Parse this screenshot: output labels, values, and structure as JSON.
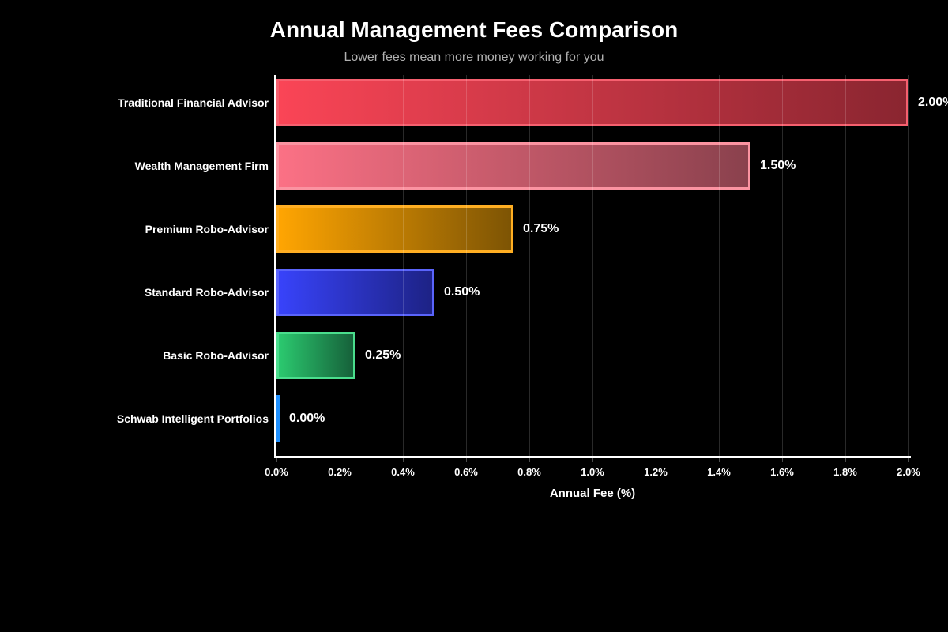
{
  "page": {
    "background_color": "#000000"
  },
  "chart_data": {
    "type": "bar",
    "orientation": "horizontal",
    "title": "Annual Management Fees Comparison",
    "subtitle": "Lower fees mean more money working for you",
    "xlabel": "Annual Fee (%)",
    "xlim": [
      0.0,
      2.0
    ],
    "grid": true,
    "legend": "none",
    "title_color": "#ffffff",
    "subtitle_color": "#b0b0b0",
    "axis_text_color": "#ffffff",
    "categories": [
      "Traditional Financial Advisor",
      "Wealth Management Firm",
      "Premium Robo-Advisor",
      "Standard Robo-Advisor",
      "Basic Robo-Advisor",
      "Schwab Intelligent Portfolios"
    ],
    "values": [
      2.0,
      1.5,
      0.75,
      0.5,
      0.25,
      0.0
    ],
    "value_labels": [
      "2.00%",
      "1.50%",
      "0.75%",
      "0.50%",
      "0.25%",
      "0.00%"
    ],
    "x_ticks": [
      {
        "value": 0.0,
        "label": "0.0%"
      },
      {
        "value": 0.2,
        "label": "0.2%"
      },
      {
        "value": 0.4,
        "label": "0.4%"
      },
      {
        "value": 0.6,
        "label": "0.6%"
      },
      {
        "value": 0.8,
        "label": "0.8%"
      },
      {
        "value": 1.0,
        "label": "1.0%"
      },
      {
        "value": 1.2,
        "label": "1.2%"
      },
      {
        "value": 1.4,
        "label": "1.4%"
      },
      {
        "value": 1.6,
        "label": "1.6%"
      },
      {
        "value": 1.8,
        "label": "1.8%"
      },
      {
        "value": 2.0,
        "label": "2.0%"
      }
    ],
    "bar_colors": [
      {
        "gradient_start": "#fa4556",
        "gradient_end": "#8a2530",
        "border": "#f6606f"
      },
      {
        "gradient_start": "#fb7185",
        "gradient_end": "#8a414d",
        "border": "#fb93a1"
      },
      {
        "gradient_start": "#ffa502",
        "gradient_end": "#7d5404",
        "border": "#ffae22"
      },
      {
        "gradient_start": "#3843fa",
        "gradient_end": "#1d2285",
        "border": "#5a64fb"
      },
      {
        "gradient_start": "#2bc96f",
        "gradient_end": "#16613a",
        "border": "#4ade8d"
      },
      {
        "gradient_start": "#1e90ff",
        "gradient_end": "#1e90ff",
        "border": "#1e90ff"
      }
    ]
  }
}
